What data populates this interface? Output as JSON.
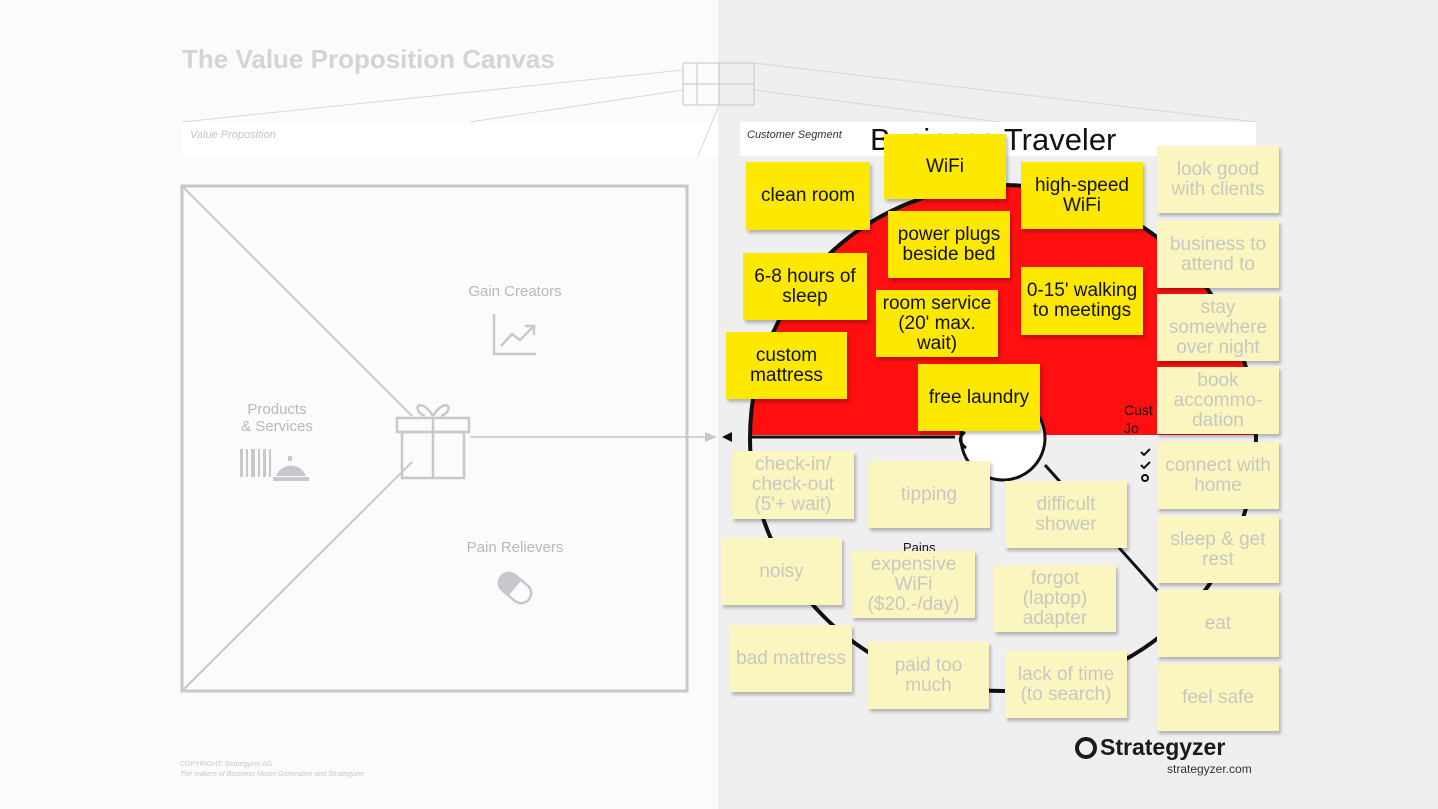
{
  "title": "The Value Proposition Canvas",
  "value_proposition_label": "Value Proposition",
  "customer_segment_label": "Customer Segment",
  "customer_segment_name": "Business Traveler",
  "sections": {
    "gain_creators": "Gain Creators",
    "products_services": "Products\n& Services",
    "pain_relievers": "Pain Relievers",
    "customer_jobs": "Cust\nJo",
    "pains": "Pains"
  },
  "gains": [
    "clean room",
    "WiFi",
    "high-speed WiFi",
    "power plugs beside bed",
    "6-8 hours of sleep",
    "0-15' walking to meetings",
    "room service (20' max. wait)",
    "custom mattress",
    "free laundry"
  ],
  "pains": [
    "check-in/ check-out (5'+ wait)",
    "tipping",
    "difficult shower",
    "noisy",
    "expensive WiFi ($20.-/day)",
    "forgot (laptop) adapter",
    "bad mattress",
    "paid too much",
    "lack of time (to search)"
  ],
  "jobs": [
    "look good with clients",
    "business to attend to",
    "stay somewhere over night",
    "book accommo-dation",
    "connect with home",
    "sleep & get rest",
    "eat",
    "feel safe"
  ],
  "brand": "Strategyzer",
  "brand_url": "strategyzer.com",
  "copyright": {
    "line1": "COPYRIGHT: Strategyzer AG",
    "line2": "The makers of Business Model Generation and Strategyzer"
  },
  "colors": {
    "gain_sticky": "#fde801",
    "faded_sticky": "#fbf6bf",
    "gain_area": "#ff0f0f"
  }
}
